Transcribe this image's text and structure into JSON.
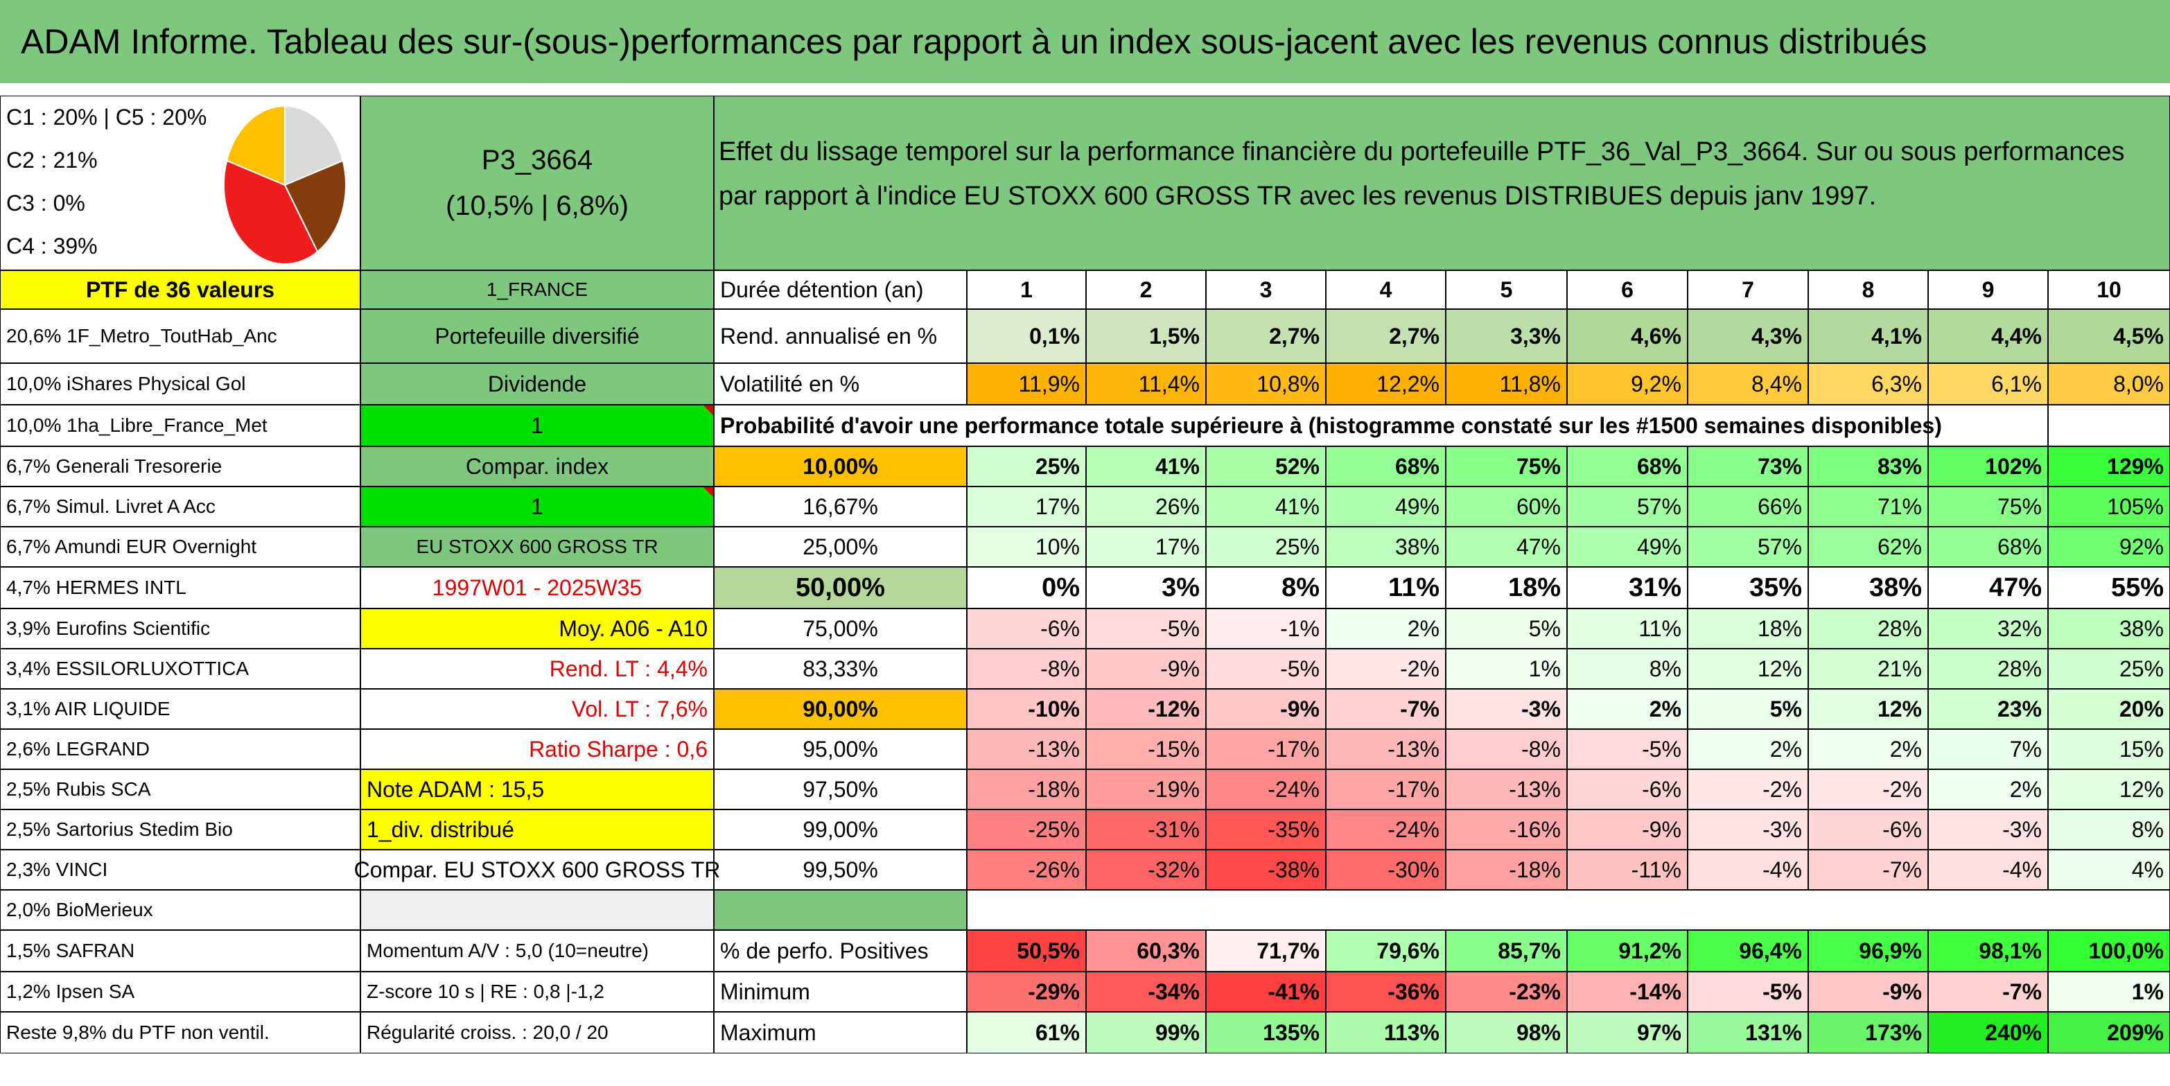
{
  "title": "ADAM Informe. Tableau des sur-(sous-)performances par rapport à un index sous-jacent avec les revenus connus distribués",
  "legend": [
    "C1 : 20% | C5 : 20%",
    "C2 : 21%",
    "C3 : 0%",
    "C4 : 39%"
  ],
  "pie": [
    {
      "name": "C1",
      "value": 20,
      "color": "#d9d9d9"
    },
    {
      "name": "C2",
      "value": 21,
      "color": "#843c0c"
    },
    {
      "name": "C4",
      "value": 39,
      "color": "#ee1c1c"
    },
    {
      "name": "C5",
      "value": 20,
      "color": "#ffc000"
    }
  ],
  "portfolio": {
    "code": "P3_3664",
    "stats": "(10,5% | 6,8%)"
  },
  "description": "Effet du lissage temporel sur la performance financière du portefeuille PTF_36_Val_P3_3664. Sur ou sous performances par rapport à l'indice EU STOXX 600 GROSS TR avec les revenus DISTRIBUES depuis janv 1997.",
  "col_a": [
    "PTF de 36 valeurs",
    "20,6% 1F_Metro_ToutHab_Anc",
    "10,0% iShares Physical Gol",
    "10,0% 1ha_Libre_France_Met",
    "6,7% Generali Tresorerie",
    "6,7% Simul. Livret A Acc",
    "6,7% Amundi EUR Overnight",
    "4,7% HERMES INTL",
    "3,9% Eurofins Scientific",
    "3,4% ESSILORLUXOTTICA",
    "3,1% AIR LIQUIDE",
    "2,6% LEGRAND",
    "2,5% Rubis SCA",
    "2,5% Sartorius Stedim Bio",
    "2,3% VINCI",
    "2,0% BioMerieux",
    "1,5% SAFRAN",
    "1,2% Ipsen SA",
    "Reste 9,8% du PTF non ventil."
  ],
  "col_b": [
    "1_FRANCE",
    "Portefeuille diversifié",
    "Dividende",
    "1",
    "Compar. index",
    "1",
    "EU STOXX 600 GROSS TR",
    "1997W01 - 2025W35",
    "Moy. A06 - A10",
    "Rend. LT : 4,4%",
    "Vol. LT : 7,6%",
    "Ratio Sharpe : 0,6",
    "Note ADAM : 15,5",
    "1_div. distribué",
    "Compar. EU STOXX 600 GROSS TR",
    "",
    "Momentum A/V : 5,0 (10=neutre)",
    "Z-score 10 s | RE : 0,8 |-1,2",
    "Régularité croiss. : 20,0 / 20"
  ],
  "holding_label": "Durée détention (an)",
  "years": [
    "1",
    "2",
    "3",
    "4",
    "5",
    "6",
    "7",
    "8",
    "9",
    "10"
  ],
  "rend_label": "Rend. annualisé en %",
  "rend": [
    "0,1%",
    "1,5%",
    "2,7%",
    "2,7%",
    "3,3%",
    "4,6%",
    "4,3%",
    "4,1%",
    "4,4%",
    "4,5%"
  ],
  "vol_label": "Volatilité en %",
  "vol": [
    "11,9%",
    "11,4%",
    "10,8%",
    "12,2%",
    "11,8%",
    "9,2%",
    "8,4%",
    "6,3%",
    "6,1%",
    "8,0%"
  ],
  "prob_label": "Probabilité d'avoir une performance totale supérieure à (histogramme constaté sur les #1500 semaines disponibles)",
  "quantiles": [
    {
      "q": "10,00%",
      "v": [
        "25%",
        "41%",
        "52%",
        "68%",
        "75%",
        "68%",
        "73%",
        "83%",
        "102%",
        "129%"
      ]
    },
    {
      "q": "16,67%",
      "v": [
        "17%",
        "26%",
        "41%",
        "49%",
        "60%",
        "57%",
        "66%",
        "71%",
        "75%",
        "105%"
      ]
    },
    {
      "q": "25,00%",
      "v": [
        "10%",
        "17%",
        "25%",
        "38%",
        "47%",
        "49%",
        "57%",
        "62%",
        "68%",
        "92%"
      ]
    },
    {
      "q": "50,00%",
      "v": [
        "0%",
        "3%",
        "8%",
        "11%",
        "18%",
        "31%",
        "35%",
        "38%",
        "47%",
        "55%"
      ]
    },
    {
      "q": "75,00%",
      "v": [
        "-6%",
        "-5%",
        "-1%",
        "2%",
        "5%",
        "11%",
        "18%",
        "28%",
        "32%",
        "38%"
      ]
    },
    {
      "q": "83,33%",
      "v": [
        "-8%",
        "-9%",
        "-5%",
        "-2%",
        "1%",
        "8%",
        "12%",
        "21%",
        "28%",
        "25%"
      ]
    },
    {
      "q": "90,00%",
      "v": [
        "-10%",
        "-12%",
        "-9%",
        "-7%",
        "-3%",
        "2%",
        "5%",
        "12%",
        "23%",
        "20%"
      ]
    },
    {
      "q": "95,00%",
      "v": [
        "-13%",
        "-15%",
        "-17%",
        "-13%",
        "-8%",
        "-5%",
        "2%",
        "2%",
        "7%",
        "15%"
      ]
    },
    {
      "q": "97,50%",
      "v": [
        "-18%",
        "-19%",
        "-24%",
        "-17%",
        "-13%",
        "-6%",
        "-2%",
        "-2%",
        "2%",
        "12%"
      ]
    },
    {
      "q": "99,00%",
      "v": [
        "-25%",
        "-31%",
        "-35%",
        "-24%",
        "-16%",
        "-9%",
        "-3%",
        "-6%",
        "-3%",
        "8%"
      ]
    },
    {
      "q": "99,50%",
      "v": [
        "-26%",
        "-32%",
        "-38%",
        "-30%",
        "-18%",
        "-11%",
        "-4%",
        "-7%",
        "-4%",
        "4%"
      ]
    }
  ],
  "pos_label": "% de perfo. Positives",
  "pos": [
    "50,5%",
    "60,3%",
    "71,7%",
    "79,6%",
    "85,7%",
    "91,2%",
    "96,4%",
    "96,9%",
    "98,1%",
    "100,0%"
  ],
  "min_label": "Minimum",
  "min": [
    "-29%",
    "-34%",
    "-41%",
    "-36%",
    "-23%",
    "-14%",
    "-5%",
    "-9%",
    "-7%",
    "1%"
  ],
  "max_label": "Maximum",
  "max": [
    "61%",
    "99%",
    "135%",
    "113%",
    "98%",
    "97%",
    "131%",
    "173%",
    "240%",
    "209%"
  ],
  "colors": {
    "green": "#7ec77e",
    "yellow": "#ffff00",
    "orange": "#ffc000",
    "bright_green": "#00e000",
    "red_text": "#e00000"
  }
}
